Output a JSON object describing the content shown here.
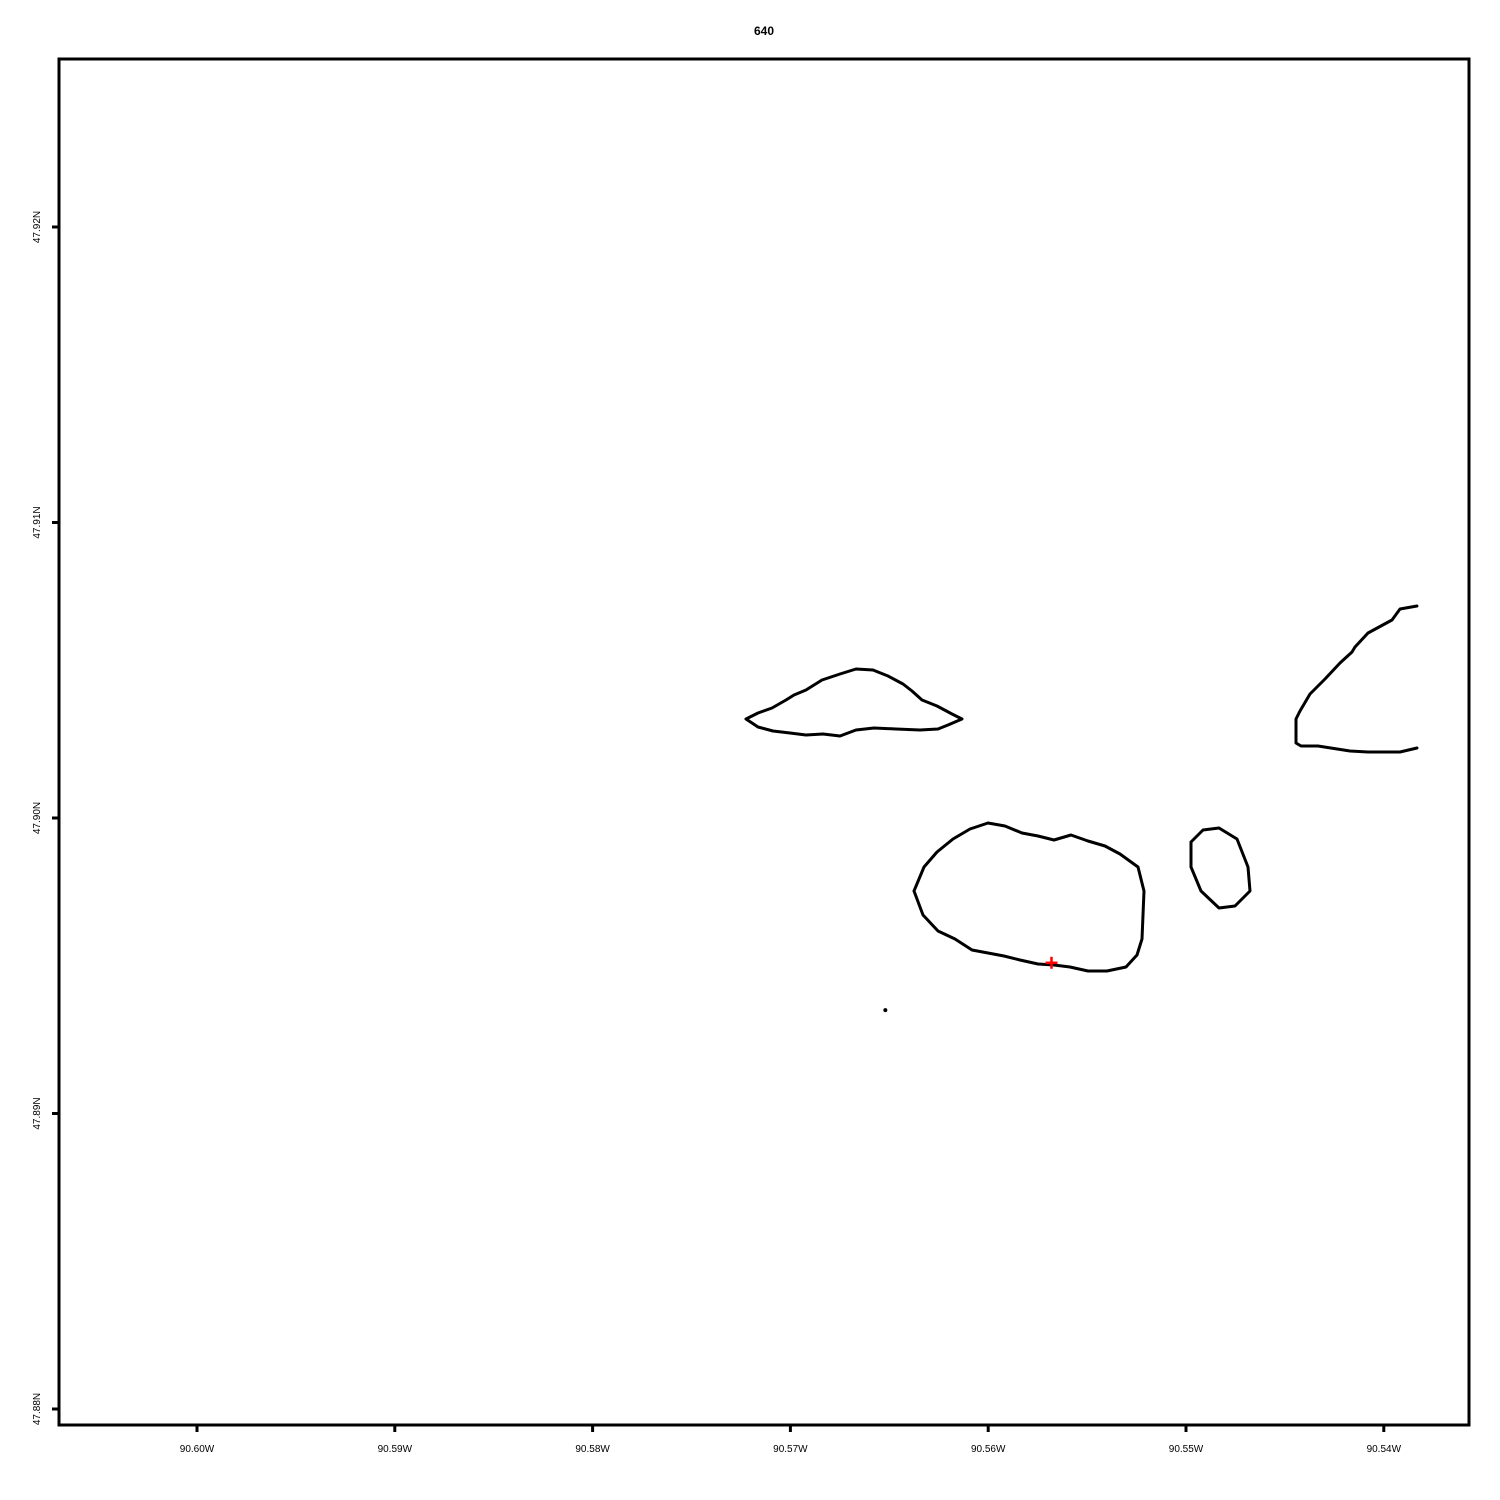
{
  "map": {
    "title": "640",
    "colors": {
      "outline": "#000000",
      "marker": "#ff0000",
      "background": "#ffffff"
    },
    "x_ticks": [
      {
        "label": "90.60W",
        "lon": -90.6
      },
      {
        "label": "90.59W",
        "lon": -90.59
      },
      {
        "label": "90.58W",
        "lon": -90.58
      },
      {
        "label": "90.57W",
        "lon": -90.57
      },
      {
        "label": "90.56W",
        "lon": -90.56
      },
      {
        "label": "90.55W",
        "lon": -90.55
      },
      {
        "label": "90.54W",
        "lon": -90.54
      }
    ],
    "y_ticks": [
      {
        "label": "47.92N",
        "lat": 47.92
      },
      {
        "label": "47.91N",
        "lat": 47.91
      },
      {
        "label": "47.90N",
        "lat": 47.9
      },
      {
        "label": "47.89N",
        "lat": 47.89
      },
      {
        "label": "47.88N",
        "lat": 47.88
      }
    ],
    "marker": {
      "name": "red-cross-marker",
      "lon": -90.5568,
      "lat": 47.8951
    },
    "point": {
      "name": "small-dot",
      "lon": -90.5652,
      "lat": 47.8935
    }
  }
}
